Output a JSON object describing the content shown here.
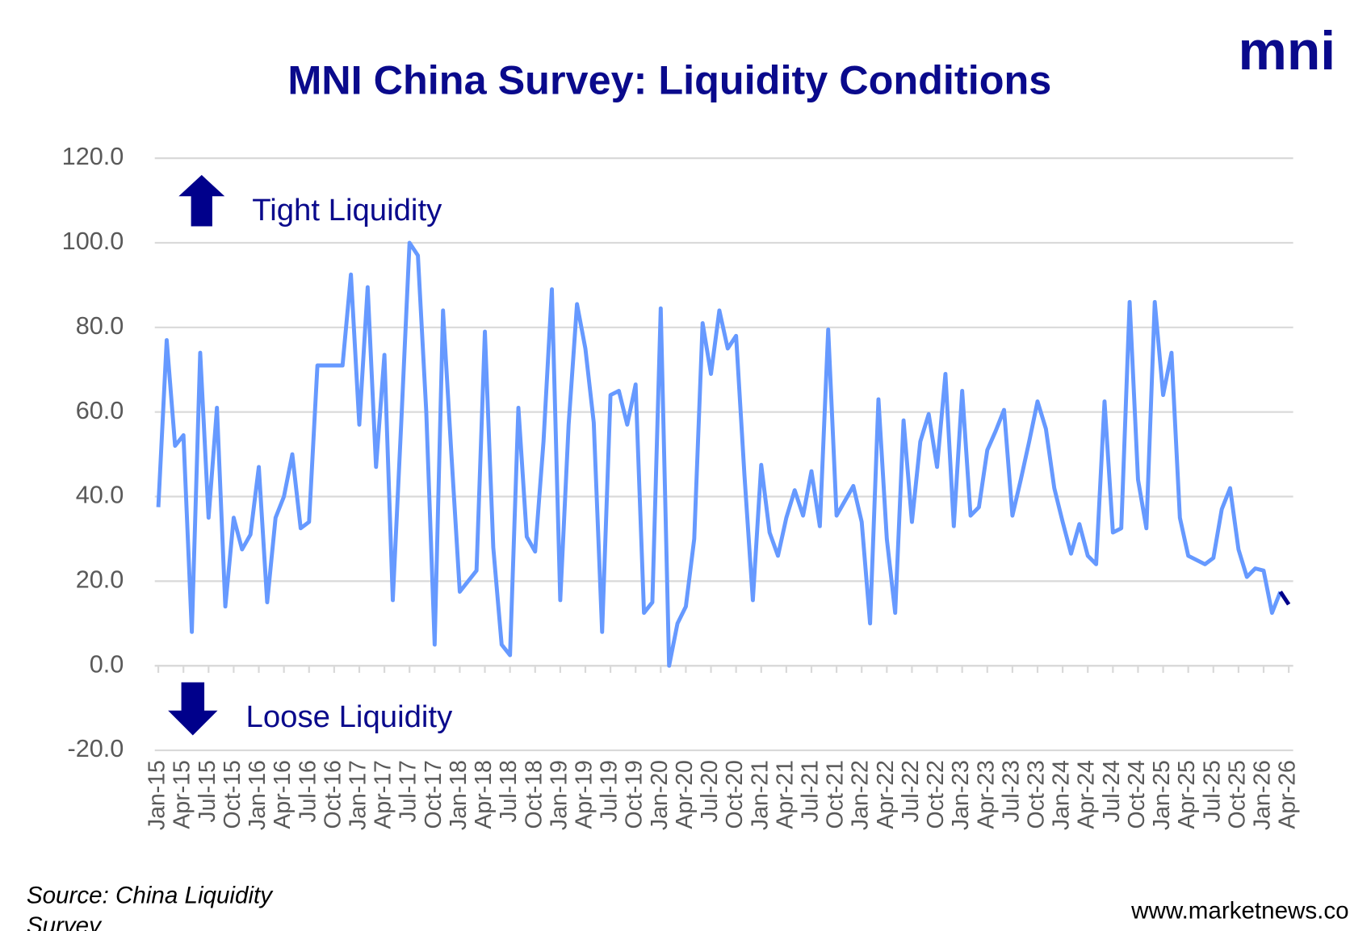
{
  "chart_data": {
    "type": "line",
    "title": "MNI China Survey: Liquidity Conditions",
    "logo": "mni",
    "annotations": [
      "Tight Liquidity",
      "Loose Liquidity"
    ],
    "source": "Source: China Liquidity Survey",
    "website": "www.marketnews.co",
    "grid": true,
    "ylim": [
      -20,
      120
    ],
    "yticks": [
      {
        "value": -20,
        "label": "-20.0"
      },
      {
        "value": 0,
        "label": "0.0"
      },
      {
        "value": 20,
        "label": "20.0"
      },
      {
        "value": 40,
        "label": "40.0"
      },
      {
        "value": 60,
        "label": "60.0"
      },
      {
        "value": 80,
        "label": "80.0"
      },
      {
        "value": 100,
        "label": "100.0"
      },
      {
        "value": 120,
        "label": "120.0"
      }
    ],
    "categories": [
      "Jan-15",
      null,
      null,
      "Apr-15",
      null,
      null,
      "Jul-15",
      null,
      null,
      "Oct-15",
      null,
      null,
      "Jan-16",
      null,
      null,
      "Apr-16",
      null,
      null,
      "Jul-16",
      null,
      null,
      "Oct-16",
      null,
      null,
      "Jan-17",
      null,
      null,
      "Apr-17",
      null,
      null,
      "Jul-17",
      null,
      null,
      "Oct-17",
      null,
      null,
      "Jan-18",
      null,
      null,
      "Apr-18",
      null,
      null,
      "Jul-18",
      null,
      null,
      "Oct-18",
      null,
      null,
      "Jan-19",
      null,
      null,
      "Apr-19",
      null,
      null,
      "Jul-19",
      null,
      null,
      "Oct-19",
      null,
      null,
      "Jan-20",
      null,
      null,
      "Apr-20",
      null,
      null,
      "Jul-20",
      null,
      null,
      "Oct-20",
      null,
      null,
      "Jan-21",
      null,
      null,
      "Apr-21",
      null,
      null,
      "Jul-21",
      null,
      null,
      "Oct-21",
      null,
      null,
      "Jan-22",
      null,
      null,
      "Apr-22",
      null,
      null,
      "Jul-22",
      null,
      null,
      "Oct-22",
      null,
      null,
      "Jan-23",
      null,
      null,
      "Apr-23",
      null,
      null,
      "Jul-23",
      null,
      null,
      "Oct-23",
      null,
      null,
      "Jan-24",
      null,
      null,
      "Apr-24",
      null,
      null,
      "Jul-24",
      null,
      null,
      "Oct-24",
      null,
      null,
      "Jan-25",
      null,
      null,
      "Apr-25",
      null,
      null,
      "Jul-25",
      null,
      null,
      "Oct-25",
      null,
      null,
      "Jan-26",
      null,
      null,
      "Apr-26"
    ],
    "series": [
      {
        "color": "#6699ff",
        "values": [
          37.5,
          77,
          52,
          54.5,
          8,
          74,
          35,
          61,
          14,
          35,
          27.5,
          31,
          47,
          15,
          35,
          40,
          50,
          32.5,
          34,
          71,
          71,
          71,
          71,
          92.5,
          57,
          89.5,
          47,
          73.5,
          15.5,
          57,
          100,
          97,
          60,
          5,
          84,
          50,
          17.5,
          20,
          22.5,
          79,
          28,
          5,
          2.5,
          61,
          30.5,
          27,
          53,
          89,
          15.5,
          57,
          85.5,
          75,
          57.5,
          8,
          64,
          65,
          57,
          66.5,
          12.5,
          15,
          84.5,
          0,
          10,
          14,
          30,
          81,
          69,
          84,
          75,
          78,
          45,
          15.5,
          47.5,
          31.5,
          26,
          35,
          41.5,
          35.5,
          46,
          33,
          79.5,
          35.5,
          39,
          42.5,
          34,
          10,
          63,
          30,
          12.5,
          58,
          34,
          53,
          59.5,
          47,
          69,
          33,
          65,
          35.5,
          37.5,
          51,
          55.5,
          60.5,
          35.5,
          44,
          53,
          62.5,
          56,
          42,
          34,
          26.5,
          33.5,
          26,
          24,
          62.5,
          31.5,
          32.5,
          86,
          44,
          32.5,
          86,
          64,
          74,
          35,
          26,
          25,
          24,
          25.5,
          37,
          42,
          27.5,
          21,
          23,
          22.5,
          12.5,
          17.5,
          null
        ]
      },
      {
        "color": "#00008b",
        "values": [
          null,
          null,
          null,
          null,
          null,
          null,
          null,
          null,
          null,
          null,
          null,
          null,
          null,
          null,
          null,
          null,
          null,
          null,
          null,
          null,
          null,
          null,
          null,
          null,
          null,
          null,
          null,
          null,
          null,
          null,
          null,
          null,
          null,
          null,
          null,
          null,
          null,
          null,
          null,
          null,
          null,
          null,
          null,
          null,
          null,
          null,
          null,
          null,
          null,
          null,
          null,
          null,
          null,
          null,
          null,
          null,
          null,
          null,
          null,
          null,
          null,
          null,
          null,
          null,
          null,
          null,
          null,
          null,
          null,
          null,
          null,
          null,
          null,
          null,
          null,
          null,
          null,
          null,
          null,
          null,
          null,
          null,
          null,
          null,
          null,
          null,
          null,
          null,
          null,
          null,
          null,
          null,
          null,
          null,
          null,
          null,
          null,
          null,
          null,
          null,
          null,
          null,
          null,
          null,
          null,
          null,
          null,
          null,
          null,
          null,
          null,
          null,
          null,
          null,
          null,
          null,
          null,
          null,
          null,
          null,
          null,
          null,
          null,
          null,
          null,
          null,
          null,
          null,
          null,
          null,
          null,
          null,
          null,
          null,
          17.5,
          14.5
        ]
      }
    ]
  }
}
